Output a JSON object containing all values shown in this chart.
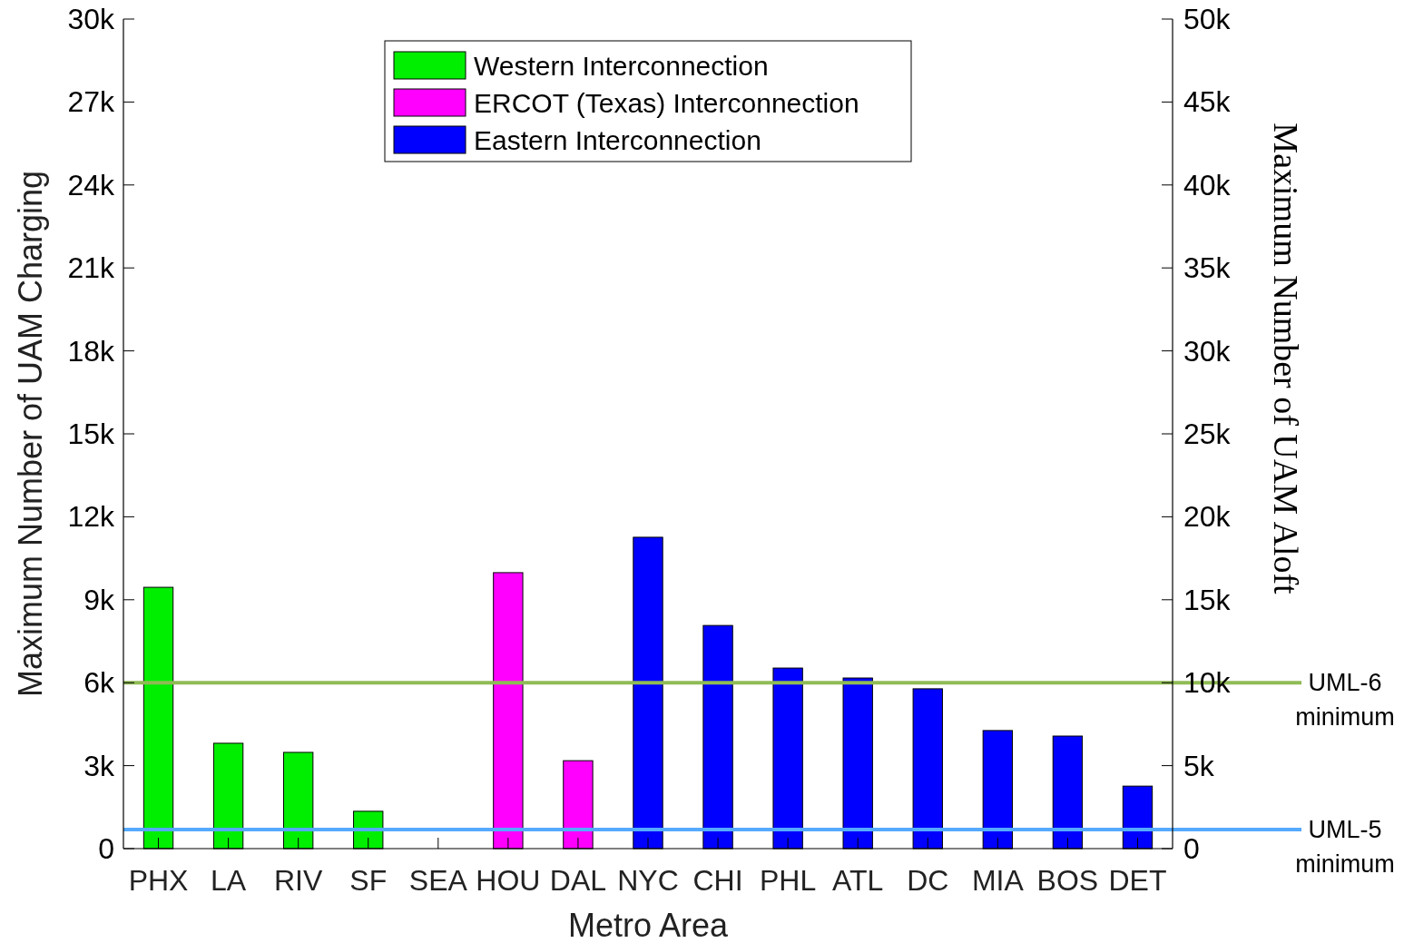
{
  "chart_data": {
    "type": "bar",
    "xlabel": "Metro Area",
    "ylabel": "Maximum Number of UAM Charging",
    "y2label": "Maximum Number of UAM Aloft",
    "categories": [
      "PHX",
      "LA",
      "RIV",
      "SF",
      "SEA",
      "HOU",
      "DAL",
      "NYC",
      "CHI",
      "PHL",
      "ATL",
      "DC",
      "MIA",
      "BOS",
      "DET"
    ],
    "series": [
      {
        "name": "Western Interconnection",
        "color": "#00ee00",
        "values": [
          9450,
          3810,
          3480,
          1350,
          null,
          null,
          null,
          null,
          null,
          null,
          null,
          null,
          null,
          null,
          null
        ]
      },
      {
        "name": "ERCOT (Texas) Interconnection",
        "color": "#ff00ff",
        "values": [
          null,
          null,
          null,
          null,
          null,
          9980,
          3180,
          null,
          null,
          null,
          null,
          null,
          null,
          null,
          null
        ]
      },
      {
        "name": "Eastern Interconnection",
        "color": "#0000ff",
        "values": [
          null,
          null,
          null,
          null,
          null,
          null,
          null,
          11260,
          8070,
          6530,
          6170,
          5780,
          4270,
          4070,
          2260
        ]
      }
    ],
    "ylim": [
      0,
      30000
    ],
    "yticks": [
      {
        "value": 0,
        "label": "0"
      },
      {
        "value": 3000,
        "label": "3k"
      },
      {
        "value": 6000,
        "label": "6k"
      },
      {
        "value": 9000,
        "label": "9k"
      },
      {
        "value": 12000,
        "label": "12k"
      },
      {
        "value": 15000,
        "label": "15k"
      },
      {
        "value": 18000,
        "label": "18k"
      },
      {
        "value": 21000,
        "label": "21k"
      },
      {
        "value": 24000,
        "label": "24k"
      },
      {
        "value": 27000,
        "label": "27k"
      },
      {
        "value": 30000,
        "label": "30k"
      }
    ],
    "y2lim": [
      0,
      50000
    ],
    "y2ticks": [
      {
        "value": 0,
        "label": "0"
      },
      {
        "value": 5000,
        "label": "5k"
      },
      {
        "value": 10000,
        "label": "10k"
      },
      {
        "value": 15000,
        "label": "15k"
      },
      {
        "value": 20000,
        "label": "20k"
      },
      {
        "value": 25000,
        "label": "25k"
      },
      {
        "value": 30000,
        "label": "30k"
      },
      {
        "value": 35000,
        "label": "35k"
      },
      {
        "value": 40000,
        "label": "40k"
      },
      {
        "value": 45000,
        "label": "45k"
      },
      {
        "value": 50000,
        "label": "50k"
      }
    ],
    "ref_lines": [
      {
        "axis": "y2",
        "value": 10000,
        "label": "UML-6 minimum",
        "color": "#8fbb55"
      },
      {
        "axis": "y2",
        "value": 1150,
        "label": "UML-5 minimum",
        "color": "#55aaff"
      }
    ],
    "legend": "top",
    "grid": false
  }
}
